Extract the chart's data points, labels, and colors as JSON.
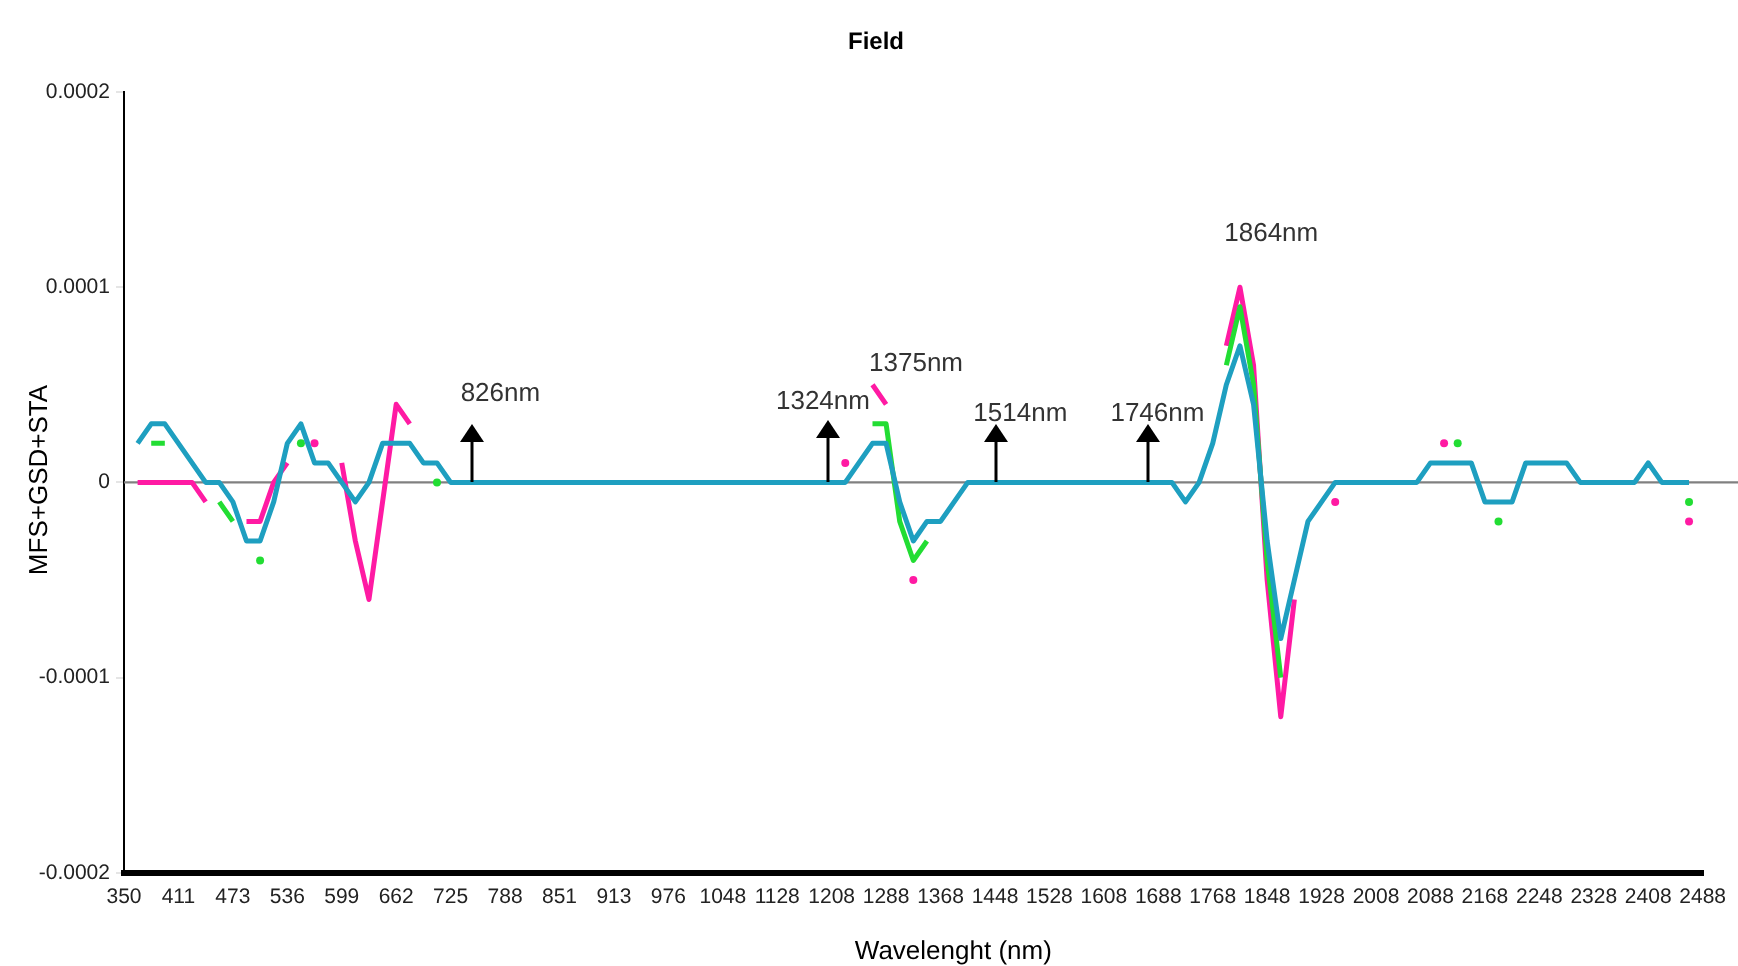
{
  "chart_data": {
    "type": "line",
    "title": "Field",
    "xlabel": "Wavelenght (nm)",
    "ylabel": "MFS+GSD+STA",
    "categories": [
      "350",
      null,
      null,
      null,
      "411",
      null,
      null,
      null,
      "473",
      null,
      null,
      null,
      "536",
      null,
      null,
      null,
      "599",
      null,
      null,
      null,
      "662",
      null,
      null,
      null,
      "725",
      null,
      null,
      null,
      "788",
      null,
      null,
      null,
      "851",
      null,
      null,
      null,
      "913",
      null,
      null,
      null,
      "976",
      null,
      null,
      null,
      "1048",
      null,
      null,
      null,
      "1128",
      null,
      null,
      null,
      "1208",
      null,
      null,
      null,
      "1288",
      null,
      null,
      null,
      "1368",
      null,
      null,
      null,
      "1448",
      null,
      null,
      null,
      "1528",
      null,
      null,
      null,
      "1608",
      null,
      null,
      null,
      "1688",
      null,
      null,
      null,
      "1768",
      null,
      null,
      null,
      "1848",
      null,
      null,
      null,
      "1928",
      null,
      null,
      null,
      "2008",
      null,
      null,
      null,
      "2088",
      null,
      null,
      null,
      "2168",
      null,
      null,
      null,
      "2248",
      null,
      null,
      null,
      "2328",
      null,
      null,
      null,
      "2408",
      null,
      null,
      null,
      "2488"
    ],
    "series": [
      {
        "color": "#ff1aa3",
        "values": [
          null,
          0,
          0,
          0,
          0,
          0,
          -1e-05,
          null,
          null,
          -2e-05,
          -2e-05,
          0,
          1e-05,
          null,
          2e-05,
          null,
          1e-05,
          -3e-05,
          -6e-05,
          -1e-05,
          4e-05,
          3e-05,
          null,
          null,
          null,
          null,
          null,
          null,
          null,
          null,
          null,
          null,
          null,
          null,
          null,
          null,
          null,
          null,
          null,
          null,
          null,
          null,
          null,
          null,
          null,
          null,
          null,
          null,
          null,
          null,
          null,
          null,
          null,
          1e-05,
          null,
          5e-05,
          4e-05,
          null,
          -5e-05,
          null,
          null,
          null,
          null,
          null,
          null,
          null,
          null,
          null,
          null,
          null,
          null,
          null,
          null,
          null,
          null,
          null,
          null,
          null,
          null,
          null,
          null,
          7e-05,
          0.0001,
          6e-05,
          -5e-05,
          -0.00012,
          -6e-05,
          null,
          null,
          -1e-05,
          null,
          null,
          null,
          null,
          null,
          null,
          null,
          2e-05,
          null,
          null,
          null,
          null,
          null,
          null,
          null,
          null,
          null,
          null,
          null,
          null,
          null,
          null,
          null,
          null,
          null,
          -2e-05,
          null
        ]
      },
      {
        "color": "#22dd33",
        "values": [
          null,
          null,
          2e-05,
          2e-05,
          null,
          null,
          null,
          -1e-05,
          -2e-05,
          null,
          -4e-05,
          null,
          null,
          2e-05,
          null,
          null,
          null,
          null,
          null,
          null,
          null,
          null,
          null,
          0,
          null,
          null,
          null,
          null,
          null,
          null,
          null,
          null,
          null,
          null,
          null,
          null,
          null,
          null,
          null,
          null,
          null,
          null,
          null,
          null,
          null,
          null,
          null,
          null,
          null,
          null,
          null,
          null,
          null,
          null,
          null,
          3e-05,
          3e-05,
          -2e-05,
          -4e-05,
          -3e-05,
          null,
          null,
          null,
          null,
          null,
          null,
          null,
          null,
          null,
          null,
          null,
          null,
          null,
          null,
          null,
          null,
          null,
          null,
          null,
          null,
          null,
          6e-05,
          9e-05,
          5e-05,
          -4e-05,
          -0.0001,
          null,
          null,
          null,
          null,
          null,
          null,
          null,
          null,
          null,
          null,
          null,
          null,
          2e-05,
          null,
          null,
          -2e-05,
          null,
          null,
          null,
          null,
          null,
          null,
          null,
          null,
          null,
          null,
          null,
          null,
          null,
          -1e-05,
          null
        ]
      },
      {
        "color": "#1e9fc0",
        "values": [
          null,
          2e-05,
          3e-05,
          3e-05,
          2e-05,
          1e-05,
          0,
          0,
          -1e-05,
          -3e-05,
          -3e-05,
          -1e-05,
          2e-05,
          3e-05,
          1e-05,
          1e-05,
          0,
          -1e-05,
          0,
          2e-05,
          2e-05,
          2e-05,
          1e-05,
          1e-05,
          0,
          0,
          0,
          0,
          0,
          0,
          0,
          0,
          0,
          0,
          0,
          0,
          0,
          0,
          0,
          0,
          0,
          0,
          0,
          0,
          0,
          0,
          0,
          0,
          0,
          0,
          0,
          0,
          0,
          0,
          1e-05,
          2e-05,
          2e-05,
          -1e-05,
          -3e-05,
          -2e-05,
          -2e-05,
          -1e-05,
          0,
          0,
          0,
          0,
          0,
          0,
          0,
          0,
          0,
          0,
          0,
          0,
          0,
          0,
          0,
          0,
          -1e-05,
          0,
          2e-05,
          5e-05,
          7e-05,
          4e-05,
          -3e-05,
          -8e-05,
          -5e-05,
          -2e-05,
          -1e-05,
          0,
          0,
          0,
          0,
          0,
          0,
          0,
          1e-05,
          1e-05,
          1e-05,
          1e-05,
          -1e-05,
          -1e-05,
          -1e-05,
          1e-05,
          1e-05,
          1e-05,
          1e-05,
          0,
          0,
          0,
          0,
          0,
          1e-05,
          0,
          0,
          0,
          null
        ]
      }
    ],
    "ylim": [
      -0.0002,
      0.0002
    ],
    "yticks": [
      -0.0002,
      -0.0001,
      0,
      0.0001,
      0.0002
    ],
    "grid": false,
    "legend": false,
    "marker": "none",
    "line_style": "solid",
    "ref_lines": [
      {
        "axis": "y",
        "value": 0,
        "color": "#808080"
      }
    ],
    "annotations": [
      "826nm",
      "1324nm",
      "1375nm",
      "1514nm",
      "1746nm",
      "1864nm"
    ]
  }
}
